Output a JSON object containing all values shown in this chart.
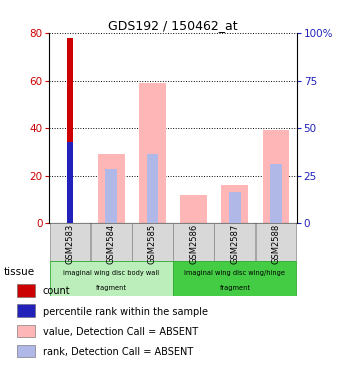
{
  "title": "GDS192 / 150462_at",
  "samples": [
    "GSM2583",
    "GSM2584",
    "GSM2585",
    "GSM2586",
    "GSM2587",
    "GSM2588"
  ],
  "count_values": [
    78,
    0,
    0,
    0,
    0,
    0
  ],
  "percentile_rank": [
    34,
    0,
    0,
    0,
    0,
    0
  ],
  "value_absent": [
    0,
    29,
    59,
    12,
    16,
    39
  ],
  "rank_absent": [
    0,
    23,
    29,
    0,
    13,
    25
  ],
  "ylim_left": [
    0,
    80
  ],
  "ylim_right": [
    0,
    100
  ],
  "yticks_left": [
    0,
    20,
    40,
    60,
    80
  ],
  "yticks_right": [
    0,
    25,
    50,
    75,
    100
  ],
  "ytick_labels_right": [
    "0",
    "25",
    "50",
    "75",
    "100%"
  ],
  "color_count": "#cc0000",
  "color_percentile": "#2222bb",
  "color_value_absent": "#ffb6b6",
  "color_rank_absent": "#b0b8e8",
  "group1_samples": [
    0,
    1,
    2
  ],
  "group2_samples": [
    3,
    4,
    5
  ],
  "group1_color": "#bbeebb",
  "group2_color": "#44cc44",
  "legend_items": [
    {
      "color": "#cc0000",
      "label": "count"
    },
    {
      "color": "#2222bb",
      "label": "percentile rank within the sample"
    },
    {
      "color": "#ffb6b6",
      "label": "value, Detection Call = ABSENT"
    },
    {
      "color": "#b0b8e8",
      "label": "rank, Detection Call = ABSENT"
    }
  ],
  "tick_label_color_left": "#cc0000",
  "tick_label_color_right": "#2222bb"
}
